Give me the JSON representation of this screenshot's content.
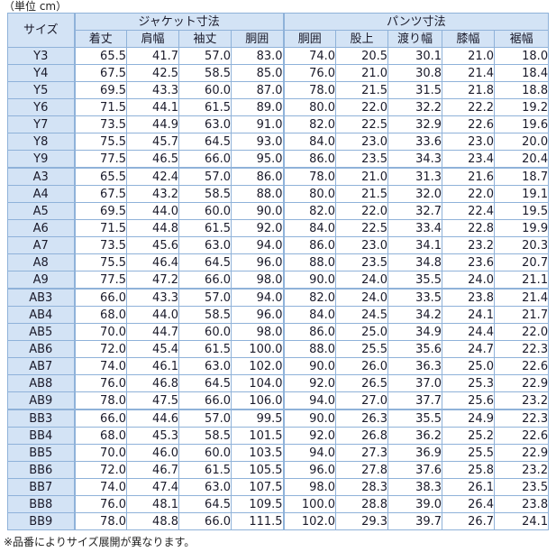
{
  "unit_note": "（単位 cm）",
  "footnote": "※品番によりサイズ展開が異なります。",
  "table": {
    "corner_label": "サイズ",
    "jacket_group": "ジャケット寸法",
    "pants_group": "パンツ寸法",
    "jacket_columns": [
      "着丈",
      "肩幅",
      "袖丈",
      "胴囲"
    ],
    "pants_columns": [
      "胴囲",
      "股上",
      "渡り幅",
      "膝幅",
      "裾幅"
    ],
    "rows": [
      {
        "size": "Y3",
        "jacket": [
          "65.5",
          "41.7",
          "57.0",
          "83.0"
        ],
        "pants": [
          "74.0",
          "20.5",
          "30.1",
          "21.0",
          "18.0"
        ]
      },
      {
        "size": "Y4",
        "jacket": [
          "67.5",
          "42.5",
          "58.5",
          "85.0"
        ],
        "pants": [
          "76.0",
          "21.0",
          "30.8",
          "21.4",
          "18.4"
        ]
      },
      {
        "size": "Y5",
        "jacket": [
          "69.5",
          "43.3",
          "60.0",
          "87.0"
        ],
        "pants": [
          "78.0",
          "21.5",
          "31.5",
          "21.8",
          "18.8"
        ]
      },
      {
        "size": "Y6",
        "jacket": [
          "71.5",
          "44.1",
          "61.5",
          "89.0"
        ],
        "pants": [
          "80.0",
          "22.0",
          "32.2",
          "22.2",
          "19.2"
        ]
      },
      {
        "size": "Y7",
        "jacket": [
          "73.5",
          "44.9",
          "63.0",
          "91.0"
        ],
        "pants": [
          "82.0",
          "22.5",
          "32.9",
          "22.6",
          "19.6"
        ]
      },
      {
        "size": "Y8",
        "jacket": [
          "75.5",
          "45.7",
          "64.5",
          "93.0"
        ],
        "pants": [
          "84.0",
          "23.0",
          "33.6",
          "23.0",
          "20.0"
        ]
      },
      {
        "size": "Y9",
        "jacket": [
          "77.5",
          "46.5",
          "66.0",
          "95.0"
        ],
        "pants": [
          "86.0",
          "23.5",
          "34.3",
          "23.4",
          "20.4"
        ]
      },
      {
        "size": "A3",
        "jacket": [
          "65.5",
          "42.4",
          "57.0",
          "86.0"
        ],
        "pants": [
          "78.0",
          "21.0",
          "31.3",
          "21.6",
          "18.7"
        ]
      },
      {
        "size": "A4",
        "jacket": [
          "67.5",
          "43.2",
          "58.5",
          "88.0"
        ],
        "pants": [
          "80.0",
          "21.5",
          "32.0",
          "22.0",
          "19.1"
        ]
      },
      {
        "size": "A5",
        "jacket": [
          "69.5",
          "44.0",
          "60.0",
          "90.0"
        ],
        "pants": [
          "82.0",
          "22.0",
          "32.7",
          "22.4",
          "19.5"
        ]
      },
      {
        "size": "A6",
        "jacket": [
          "71.5",
          "44.8",
          "61.5",
          "92.0"
        ],
        "pants": [
          "84.0",
          "22.5",
          "33.4",
          "22.8",
          "19.9"
        ]
      },
      {
        "size": "A7",
        "jacket": [
          "73.5",
          "45.6",
          "63.0",
          "94.0"
        ],
        "pants": [
          "86.0",
          "23.0",
          "34.1",
          "23.2",
          "20.3"
        ]
      },
      {
        "size": "A8",
        "jacket": [
          "75.5",
          "46.4",
          "64.5",
          "96.0"
        ],
        "pants": [
          "88.0",
          "23.5",
          "34.8",
          "23.6",
          "20.7"
        ]
      },
      {
        "size": "A9",
        "jacket": [
          "77.5",
          "47.2",
          "66.0",
          "98.0"
        ],
        "pants": [
          "90.0",
          "24.0",
          "35.5",
          "24.0",
          "21.1"
        ]
      },
      {
        "size": "AB3",
        "jacket": [
          "66.0",
          "43.3",
          "57.0",
          "94.0"
        ],
        "pants": [
          "82.0",
          "24.0",
          "33.5",
          "23.8",
          "21.4"
        ]
      },
      {
        "size": "AB4",
        "jacket": [
          "68.0",
          "44.0",
          "58.5",
          "96.0"
        ],
        "pants": [
          "84.0",
          "24.5",
          "34.2",
          "24.1",
          "21.7"
        ]
      },
      {
        "size": "AB5",
        "jacket": [
          "70.0",
          "44.7",
          "60.0",
          "98.0"
        ],
        "pants": [
          "86.0",
          "25.0",
          "34.9",
          "24.4",
          "22.0"
        ]
      },
      {
        "size": "AB6",
        "jacket": [
          "72.0",
          "45.4",
          "61.5",
          "100.0"
        ],
        "pants": [
          "88.0",
          "25.5",
          "35.6",
          "24.7",
          "22.3"
        ]
      },
      {
        "size": "AB7",
        "jacket": [
          "74.0",
          "46.1",
          "63.0",
          "102.0"
        ],
        "pants": [
          "90.0",
          "26.0",
          "36.3",
          "25.0",
          "22.6"
        ]
      },
      {
        "size": "AB8",
        "jacket": [
          "76.0",
          "46.8",
          "64.5",
          "104.0"
        ],
        "pants": [
          "92.0",
          "26.5",
          "37.0",
          "25.3",
          "22.9"
        ]
      },
      {
        "size": "AB9",
        "jacket": [
          "78.0",
          "47.5",
          "66.0",
          "106.0"
        ],
        "pants": [
          "94.0",
          "27.0",
          "37.7",
          "25.6",
          "23.2"
        ]
      },
      {
        "size": "BB3",
        "jacket": [
          "66.0",
          "44.6",
          "57.0",
          "99.5"
        ],
        "pants": [
          "90.0",
          "26.3",
          "35.5",
          "24.9",
          "22.3"
        ]
      },
      {
        "size": "BB4",
        "jacket": [
          "68.0",
          "45.3",
          "58.5",
          "101.5"
        ],
        "pants": [
          "92.0",
          "26.8",
          "36.2",
          "25.2",
          "22.6"
        ]
      },
      {
        "size": "BB5",
        "jacket": [
          "70.0",
          "46.0",
          "60.0",
          "103.5"
        ],
        "pants": [
          "94.0",
          "27.3",
          "36.9",
          "25.5",
          "22.9"
        ]
      },
      {
        "size": "BB6",
        "jacket": [
          "72.0",
          "46.7",
          "61.5",
          "105.5"
        ],
        "pants": [
          "96.0",
          "27.8",
          "37.6",
          "25.8",
          "23.2"
        ]
      },
      {
        "size": "BB7",
        "jacket": [
          "74.0",
          "47.4",
          "63.0",
          "107.5"
        ],
        "pants": [
          "98.0",
          "28.3",
          "38.3",
          "26.1",
          "23.5"
        ]
      },
      {
        "size": "BB8",
        "jacket": [
          "76.0",
          "48.1",
          "64.5",
          "109.5"
        ],
        "pants": [
          "100.0",
          "28.8",
          "39.0",
          "26.4",
          "23.8"
        ]
      },
      {
        "size": "BB9",
        "jacket": [
          "78.0",
          "48.8",
          "66.0",
          "111.5"
        ],
        "pants": [
          "102.0",
          "29.3",
          "39.7",
          "26.7",
          "24.1"
        ]
      }
    ]
  }
}
